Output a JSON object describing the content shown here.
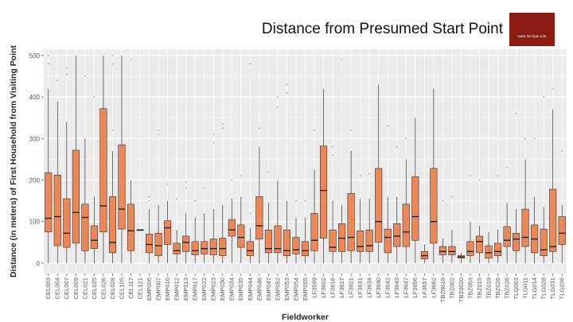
{
  "slide": {
    "title": "Distance from Presumed Start Point",
    "brand_text": "www.linchjat.com",
    "brand_color": "#8b1a12"
  },
  "chart_data": {
    "type": "box",
    "title": "",
    "xlabel": "Fieldworker",
    "ylabel": "Distance (in meters) of First Household from Visiting Point",
    "ylim": [
      -25,
      515
    ],
    "yticks": [
      0,
      100,
      200,
      300,
      400,
      500
    ],
    "grid": true,
    "legend": "none",
    "colors": {
      "box": "#ee8756",
      "box_edge": "#333333",
      "median": "#222222",
      "panel": "#ebebeb",
      "gridline": "#ffffff",
      "outlier": "#bbbbbb"
    },
    "series": [
      {
        "label": "CEL003",
        "q1": 75,
        "median": 108,
        "q3": 218,
        "whisker_low": 0,
        "whisker_high": 420,
        "outliers": [
          480,
          500
        ]
      },
      {
        "label": "CEL004",
        "q1": 42,
        "median": 112,
        "q3": 212,
        "whisker_low": 0,
        "whisker_high": 390,
        "outliers": [
          440
        ]
      },
      {
        "label": "CEL007",
        "q1": 38,
        "median": 72,
        "q3": 155,
        "whisker_low": 0,
        "whisker_high": 340,
        "outliers": [
          455,
          470
        ]
      },
      {
        "label": "CEL009",
        "q1": 48,
        "median": 122,
        "q3": 272,
        "whisker_low": 0,
        "whisker_high": 500,
        "outliers": []
      },
      {
        "label": "CEL021",
        "q1": 30,
        "median": 110,
        "q3": 142,
        "whisker_low": 0,
        "whisker_high": 300,
        "outliers": [
          450
        ]
      },
      {
        "label": "CEL025",
        "q1": 35,
        "median": 55,
        "q3": 90,
        "whisker_low": 0,
        "whisker_high": 160,
        "outliers": [
          400
        ]
      },
      {
        "label": "CEL026",
        "q1": 75,
        "median": 138,
        "q3": 372,
        "whisker_low": 0,
        "whisker_high": 500,
        "outliers": []
      },
      {
        "label": "CEL028",
        "q1": 25,
        "median": 50,
        "q3": 160,
        "whisker_low": 0,
        "whisker_high": 270,
        "outliers": [
          320,
          480,
          500
        ]
      },
      {
        "label": "CEL105",
        "q1": 82,
        "median": 130,
        "q3": 285,
        "whisker_low": 0,
        "whisker_high": 500,
        "outliers": []
      },
      {
        "label": "CEL117",
        "q1": 30,
        "median": 78,
        "q3": 142,
        "whisker_low": 0,
        "whisker_high": 200,
        "outliers": [
          490
        ]
      },
      {
        "label": "CEL121",
        "q1": 80,
        "median": 80,
        "q3": 80,
        "whisker_low": 80,
        "whisker_high": 80,
        "outliers": []
      },
      {
        "label": "EMP006",
        "q1": 25,
        "median": 45,
        "q3": 70,
        "whisker_low": 0,
        "whisker_high": 130,
        "outliers": [
          150,
          160
        ]
      },
      {
        "label": "EMP007",
        "q1": 18,
        "median": 42,
        "q3": 72,
        "whisker_low": 0,
        "whisker_high": 140,
        "outliers": [
          310,
          320
        ]
      },
      {
        "label": "EMP010",
        "q1": 45,
        "median": 85,
        "q3": 102,
        "whisker_low": 0,
        "whisker_high": 150,
        "outliers": [
          190
        ]
      },
      {
        "label": "EMP012",
        "q1": 22,
        "median": 30,
        "q3": 48,
        "whisker_low": 0,
        "whisker_high": 80,
        "outliers": [
          155
        ]
      },
      {
        "label": "EMP013",
        "q1": 28,
        "median": 50,
        "q3": 65,
        "whisker_low": 0,
        "whisker_high": 120,
        "outliers": [
          180,
          195
        ]
      },
      {
        "label": "EMP017",
        "q1": 20,
        "median": 30,
        "q3": 52,
        "whisker_low": 0,
        "whisker_high": 110,
        "outliers": [
          150
        ]
      },
      {
        "label": "EMP022",
        "q1": 22,
        "median": 35,
        "q3": 52,
        "whisker_low": 0,
        "whisker_high": 120,
        "outliers": [
          180
        ]
      },
      {
        "label": "EMP023",
        "q1": 20,
        "median": 35,
        "q3": 58,
        "whisker_low": 0,
        "whisker_high": 130,
        "outliers": [
          290,
          310
        ]
      },
      {
        "label": "EMP030",
        "q1": 18,
        "median": 35,
        "q3": 60,
        "whisker_low": 0,
        "whisker_high": 140,
        "outliers": [
          325,
          335
        ]
      },
      {
        "label": "EMP034",
        "q1": 65,
        "median": 80,
        "q3": 105,
        "whisker_low": 0,
        "whisker_high": 155,
        "outliers": [
          200
        ]
      },
      {
        "label": "EMP035",
        "q1": 38,
        "median": 62,
        "q3": 92,
        "whisker_low": 0,
        "whisker_high": 160,
        "outliers": [
          210
        ]
      },
      {
        "label": "EMP044",
        "q1": 18,
        "median": 30,
        "q3": 52,
        "whisker_low": 0,
        "whisker_high": 85,
        "outliers": [
          120,
          480
        ]
      },
      {
        "label": "EMP046",
        "q1": 58,
        "median": 90,
        "q3": 160,
        "whisker_low": 0,
        "whisker_high": 280,
        "outliers": [
          325
        ]
      },
      {
        "label": "EMP047",
        "q1": 25,
        "median": 35,
        "q3": 80,
        "whisker_low": 0,
        "whisker_high": 145,
        "outliers": [
          220
        ]
      },
      {
        "label": "EMP052",
        "q1": 25,
        "median": 35,
        "q3": 90,
        "whisker_low": 0,
        "whisker_high": 200,
        "outliers": [
          375,
          400
        ]
      },
      {
        "label": "EMP053",
        "q1": 18,
        "median": 30,
        "q3": 80,
        "whisker_low": 0,
        "whisker_high": 150,
        "outliers": [
          410,
          430
        ]
      },
      {
        "label": "EMP054",
        "q1": 22,
        "median": 32,
        "q3": 62,
        "whisker_low": 0,
        "whisker_high": 110,
        "outliers": [
          150
        ]
      },
      {
        "label": "EMP055",
        "q1": 18,
        "median": 30,
        "q3": 52,
        "whisker_low": 0,
        "whisker_high": 110,
        "outliers": [
          150
        ]
      },
      {
        "label": "LF3599",
        "q1": 30,
        "median": 55,
        "q3": 120,
        "whisker_low": 0,
        "whisker_high": 225,
        "outliers": [
          320
        ]
      },
      {
        "label": "LF3602",
        "q1": 60,
        "median": 175,
        "q3": 282,
        "whisker_low": 0,
        "whisker_high": 420,
        "outliers": []
      },
      {
        "label": "LF3616",
        "q1": 28,
        "median": 38,
        "q3": 80,
        "whisker_low": 0,
        "whisker_high": 150,
        "outliers": [
          260,
          280
        ]
      },
      {
        "label": "LF3617",
        "q1": 28,
        "median": 60,
        "q3": 95,
        "whisker_low": 0,
        "whisker_high": 140,
        "outliers": [
          490
        ]
      },
      {
        "label": "LF3621",
        "q1": 30,
        "median": 62,
        "q3": 168,
        "whisker_low": 0,
        "whisker_high": 270,
        "outliers": [
          320
        ]
      },
      {
        "label": "LF3631",
        "q1": 28,
        "median": 40,
        "q3": 78,
        "whisker_low": 0,
        "whisker_high": 155,
        "outliers": [
          210
        ]
      },
      {
        "label": "LF3634",
        "q1": 28,
        "median": 42,
        "q3": 80,
        "whisker_low": 0,
        "whisker_high": 155,
        "outliers": [
          215
        ]
      },
      {
        "label": "LF3640",
        "q1": 50,
        "median": 100,
        "q3": 228,
        "whisker_low": 0,
        "whisker_high": 430,
        "outliers": []
      },
      {
        "label": "LF3642",
        "q1": 25,
        "median": 62,
        "q3": 82,
        "whisker_low": 0,
        "whisker_high": 160,
        "outliers": [
          330
        ]
      },
      {
        "label": "LF3643",
        "q1": 40,
        "median": 65,
        "q3": 95,
        "whisker_low": 0,
        "whisker_high": 160,
        "outliers": [
          280
        ]
      },
      {
        "label": "LF3647",
        "q1": 40,
        "median": 75,
        "q3": 142,
        "whisker_low": 0,
        "whisker_high": 250,
        "outliers": [
          300
        ]
      },
      {
        "label": "LF3656",
        "q1": 55,
        "median": 112,
        "q3": 208,
        "whisker_low": 0,
        "whisker_high": 350,
        "outliers": []
      },
      {
        "label": "LF3657",
        "q1": 10,
        "median": 18,
        "q3": 28,
        "whisker_low": 0,
        "whisker_high": 45,
        "outliers": []
      },
      {
        "label": "LF3662",
        "q1": 48,
        "median": 100,
        "q3": 228,
        "whisker_low": 0,
        "whisker_high": 420,
        "outliers": []
      },
      {
        "label": "TBZ0018",
        "q1": 20,
        "median": 28,
        "q3": 40,
        "whisker_low": 0,
        "whisker_high": 60,
        "outliers": [
          150
        ]
      },
      {
        "label": "TBZ002",
        "q1": 20,
        "median": 28,
        "q3": 40,
        "whisker_low": 0,
        "whisker_high": 80,
        "outliers": [
          160
        ]
      },
      {
        "label": "TBZ0020",
        "q1": 12,
        "median": 15,
        "q3": 18,
        "whisker_low": 0,
        "whisker_high": 25,
        "outliers": []
      },
      {
        "label": "TBZ003",
        "q1": 18,
        "median": 28,
        "q3": 52,
        "whisker_low": 0,
        "whisker_high": 100,
        "outliers": [
          210
        ]
      },
      {
        "label": "TBZ015",
        "q1": 25,
        "median": 52,
        "q3": 65,
        "whisker_low": 0,
        "whisker_high": 90,
        "outliers": [
          200
        ]
      },
      {
        "label": "TBZ019",
        "q1": 12,
        "median": 25,
        "q3": 42,
        "whisker_low": 0,
        "whisker_high": 75,
        "outliers": []
      },
      {
        "label": "TBZ026",
        "q1": 18,
        "median": 28,
        "q3": 48,
        "whisker_low": 0,
        "whisker_high": 80,
        "outliers": [
          210
        ]
      },
      {
        "label": "TBZ028",
        "q1": 40,
        "median": 55,
        "q3": 88,
        "whisker_low": 0,
        "whisker_high": 145,
        "outliers": [
          230
        ]
      },
      {
        "label": "TLG003",
        "q1": 30,
        "median": 58,
        "q3": 72,
        "whisker_low": 0,
        "whisker_high": 130,
        "outliers": [
          360
        ]
      },
      {
        "label": "TLG011",
        "q1": 40,
        "median": 62,
        "q3": 130,
        "whisker_low": 0,
        "whisker_high": 250,
        "outliers": [
          300
        ]
      },
      {
        "label": "TLG014",
        "q1": 25,
        "median": 58,
        "q3": 92,
        "whisker_low": 0,
        "whisker_high": 160,
        "outliers": [
          300
        ]
      },
      {
        "label": "TLG028",
        "q1": 18,
        "median": 32,
        "q3": 82,
        "whisker_low": 0,
        "whisker_high": 135,
        "outliers": [
          400
        ]
      },
      {
        "label": "TLG031",
        "q1": 28,
        "median": 40,
        "q3": 178,
        "whisker_low": 0,
        "whisker_high": 370,
        "outliers": [
          420
        ]
      },
      {
        "label": "TLG036",
        "q1": 45,
        "median": 72,
        "q3": 112,
        "whisker_low": 0,
        "whisker_high": 140,
        "outliers": [
          270
        ]
      }
    ]
  }
}
